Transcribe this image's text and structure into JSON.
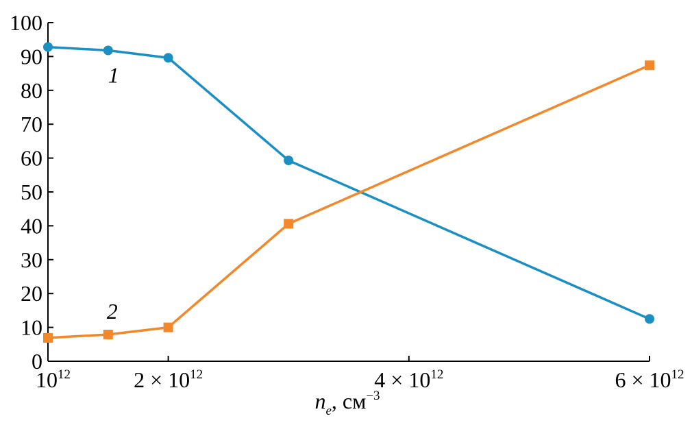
{
  "chart_data": {
    "type": "line",
    "xlim": [
      1000000000000.0,
      6000000000000.0
    ],
    "ylim": [
      0,
      100
    ],
    "grid": false,
    "legend": "none",
    "y_ticks": [
      {
        "value": 0,
        "label": "0"
      },
      {
        "value": 10,
        "label": "10"
      },
      {
        "value": 20,
        "label": "20"
      },
      {
        "value": 30,
        "label": "30"
      },
      {
        "value": 40,
        "label": "40"
      },
      {
        "value": 50,
        "label": "50"
      },
      {
        "value": 60,
        "label": "60"
      },
      {
        "value": 70,
        "label": "70"
      },
      {
        "value": 80,
        "label": "80"
      },
      {
        "value": 90,
        "label": "90"
      },
      {
        "value": 100,
        "label": "100"
      }
    ],
    "x_ticks": [
      {
        "value": 1000000000000.0,
        "coef": "",
        "base": "10",
        "exp": "12"
      },
      {
        "value": 2000000000000.0,
        "coef": "2 × ",
        "base": "10",
        "exp": "12"
      },
      {
        "value": 4000000000000.0,
        "coef": "4 × ",
        "base": "10",
        "exp": "12"
      },
      {
        "value": 6000000000000.0,
        "coef": "6 × ",
        "base": "10",
        "exp": "12"
      }
    ],
    "xlabel": {
      "var": "n",
      "sub": "e",
      "unit": ", см",
      "exp": "−3"
    },
    "series": [
      {
        "name": "1",
        "color": "#1b8fc4",
        "marker": "circle",
        "x": [
          1000000000000.0,
          1500000000000.0,
          2000000000000.0,
          3000000000000.0,
          6000000000000.0
        ],
        "y": [
          92.8,
          91.8,
          89.6,
          59.3,
          12.5
        ]
      },
      {
        "name": "2",
        "color": "#f3882a",
        "marker": "square",
        "x": [
          1000000000000.0,
          1500000000000.0,
          2000000000000.0,
          3000000000000.0,
          6000000000000.0
        ],
        "y": [
          6.9,
          7.9,
          10.0,
          40.6,
          87.4
        ]
      }
    ]
  }
}
